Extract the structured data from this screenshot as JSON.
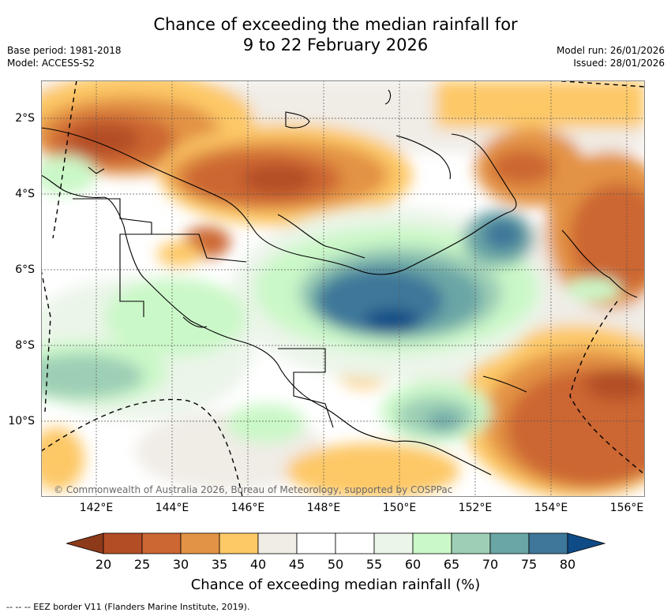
{
  "title_line1": "Chance of exceeding the median rainfall for",
  "title_line2": "9 to 22 February 2026",
  "base_period": "Base period: 1981-2018",
  "model": "Model: ACCESS-S2",
  "model_run": "Model run: 26/01/2026",
  "issued": "Issued: 28/01/2026",
  "lat_labels": [
    "2°S",
    "4°S",
    "6°S",
    "8°S",
    "10°S"
  ],
  "lon_labels": [
    "142°E",
    "144°E",
    "146°E",
    "148°E",
    "150°E",
    "152°E",
    "154°E",
    "156°E"
  ],
  "copyright": "© Commonwealth of Australia 2026, Bureau of Meteorology, supported by COSPPac",
  "colorbar": {
    "ticks": [
      "20",
      "25",
      "30",
      "35",
      "40",
      "45",
      "50",
      "55",
      "60",
      "65",
      "70",
      "75",
      "80"
    ],
    "colors": [
      "#8c3a1a",
      "#b34d26",
      "#cc6633",
      "#e39345",
      "#fdc866",
      "#f0ece6",
      "#ffffff",
      "#ffffff",
      "#ebf5e9",
      "#cbf8c8",
      "#9dcfb6",
      "#6aa6a6",
      "#3e7799",
      "#0f4b86"
    ],
    "title": "Chance of exceeding median rainfall (%)"
  },
  "legend_note": "--  --  -- EEZ border V11 (Flanders Marine Institute, 2019)."
}
